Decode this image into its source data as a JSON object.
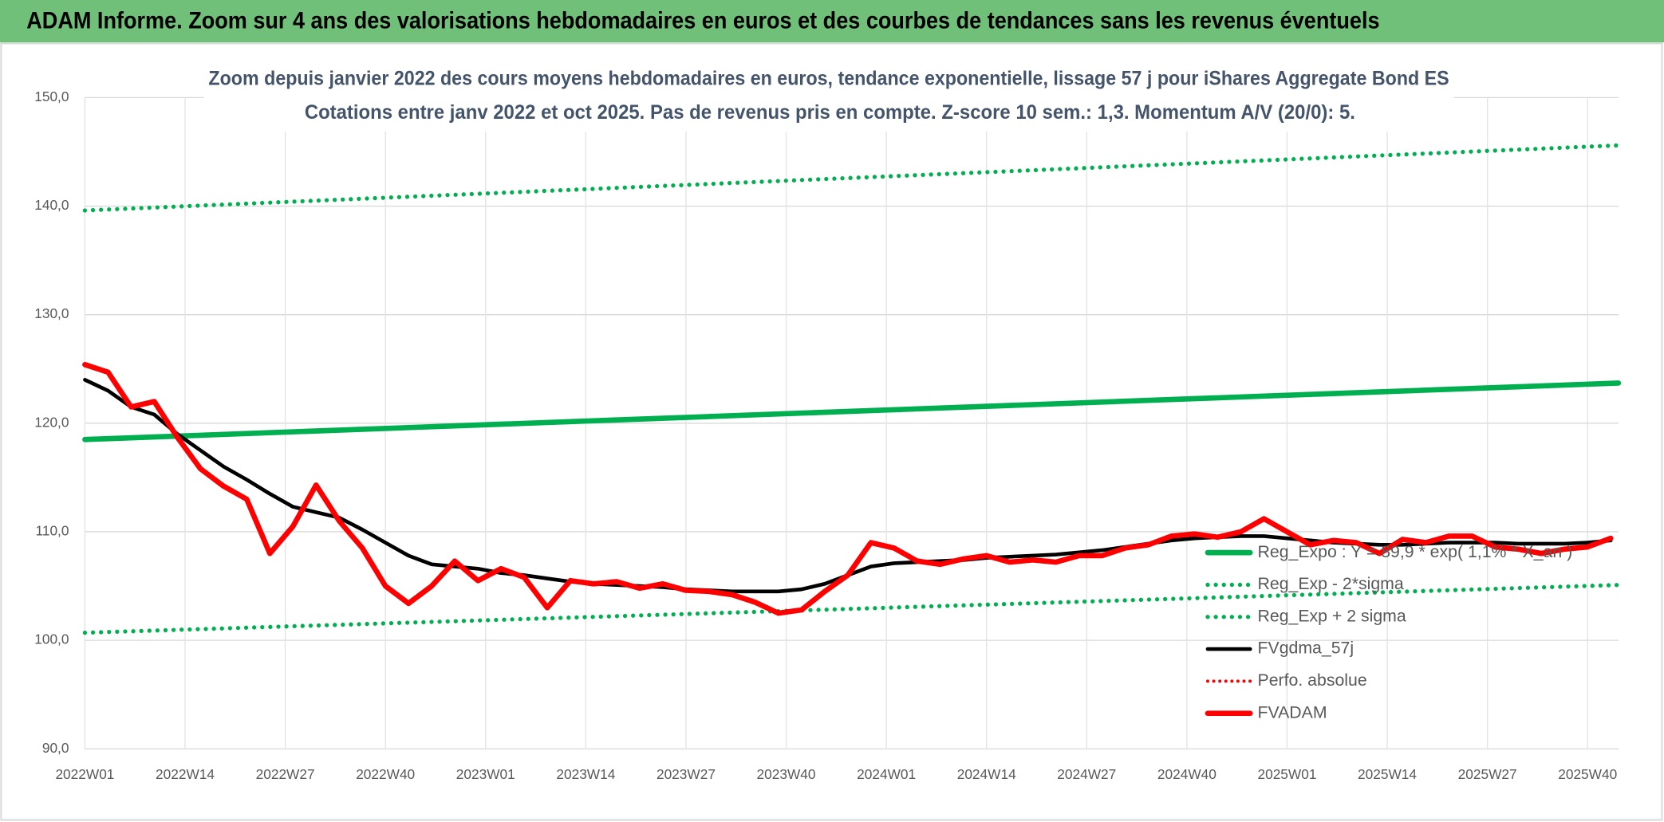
{
  "chart_data": {
    "type": "line",
    "title": "ADAM Informe. Zoom sur 4 ans des valorisations hebdomadaires en euros et des courbes de tendances sans les revenus éventuels",
    "subtitle": [
      "Zoom depuis janvier 2022 des cours moyens hebdomadaires en euros, tendance exponentielle, lissage 57 j pour iShares Aggregate Bond ES",
      "Cotations entre janv 2022 et oct 2025. Pas de revenus pris en compte. Z-score 10 sem.: 1,3. Momentum A/V (20/0): 5."
    ],
    "xlim": [
      0,
      199
    ],
    "xticks": [
      {
        "value": 0,
        "label": "2022W01"
      },
      {
        "value": 13,
        "label": "2022W14"
      },
      {
        "value": 26,
        "label": "2022W27"
      },
      {
        "value": 39,
        "label": "2022W40"
      },
      {
        "value": 52,
        "label": "2023W01"
      },
      {
        "value": 65,
        "label": "2023W14"
      },
      {
        "value": 78,
        "label": "2023W27"
      },
      {
        "value": 91,
        "label": "2023W40"
      },
      {
        "value": 104,
        "label": "2024W01"
      },
      {
        "value": 117,
        "label": "2024W14"
      },
      {
        "value": 130,
        "label": "2024W27"
      },
      {
        "value": 143,
        "label": "2024W40"
      },
      {
        "value": 156,
        "label": "2025W01"
      },
      {
        "value": 169,
        "label": "2025W14"
      },
      {
        "value": 182,
        "label": "2025W27"
      },
      {
        "value": 195,
        "label": "2025W40"
      }
    ],
    "ylim": [
      90,
      150
    ],
    "yticks": [
      {
        "value": 90,
        "label": "90,0"
      },
      {
        "value": 100,
        "label": "100,0"
      },
      {
        "value": 110,
        "label": "110,0"
      },
      {
        "value": 120,
        "label": "120,0"
      },
      {
        "value": 130,
        "label": "130,0"
      },
      {
        "value": 140,
        "label": "140,0"
      },
      {
        "value": 150,
        "label": "150,0"
      }
    ],
    "grid": true,
    "legend": "lower right",
    "series": [
      {
        "name": "Reg_Expo : Y = 89,9 * exp( 1,1% * X_an )",
        "color": "#00b050",
        "style": "solid",
        "width": 5,
        "x": [
          0,
          199
        ],
        "values": [
          118.5,
          123.7
        ]
      },
      {
        "name": "Reg_Exp - 2*sigma",
        "color": "#00b050",
        "style": "dotted",
        "width": 4,
        "x": [
          0,
          199
        ],
        "values": [
          100.7,
          105.1
        ]
      },
      {
        "name": "Reg_Exp + 2 sigma",
        "color": "#00b050",
        "style": "dotted",
        "width": 4,
        "x": [
          0,
          199
        ],
        "values": [
          139.6,
          145.6
        ]
      },
      {
        "name": "FVgdma_57j",
        "color": "#000000",
        "style": "solid",
        "width": 3.5,
        "x": [
          0,
          3,
          6,
          9,
          12,
          15,
          18,
          21,
          24,
          27,
          30,
          33,
          36,
          39,
          42,
          45,
          48,
          51,
          54,
          57,
          60,
          63,
          66,
          69,
          72,
          75,
          78,
          81,
          84,
          87,
          90,
          93,
          96,
          99,
          102,
          105,
          108,
          111,
          114,
          117,
          120,
          123,
          126,
          129,
          132,
          135,
          138,
          141,
          144,
          147,
          150,
          153,
          156,
          159,
          162,
          165,
          168,
          171,
          174,
          177,
          180,
          183,
          186,
          189,
          192,
          195,
          198
        ],
        "values": [
          124.0,
          123.0,
          121.5,
          120.8,
          119.0,
          117.5,
          116.0,
          114.8,
          113.5,
          112.3,
          111.8,
          111.3,
          110.2,
          109.0,
          107.8,
          107.0,
          106.8,
          106.6,
          106.2,
          106.0,
          105.7,
          105.4,
          105.2,
          105.1,
          105.0,
          104.9,
          104.7,
          104.6,
          104.5,
          104.5,
          104.5,
          104.7,
          105.2,
          106.0,
          106.8,
          107.1,
          107.2,
          107.3,
          107.4,
          107.6,
          107.7,
          107.8,
          107.9,
          108.1,
          108.3,
          108.6,
          108.9,
          109.2,
          109.4,
          109.5,
          109.6,
          109.6,
          109.4,
          109.2,
          109.0,
          108.9,
          108.8,
          108.8,
          108.9,
          109.0,
          109.0,
          109.0,
          108.9,
          108.9,
          108.9,
          109.0,
          109.2
        ]
      },
      {
        "name": "Perfo. absolue",
        "color": "#ff0000",
        "style": "dotted",
        "width": 3,
        "x": [],
        "values": []
      },
      {
        "name": "FVADAM",
        "color": "#ff0000",
        "style": "solid",
        "width": 5,
        "x": [
          0,
          3,
          6,
          9,
          12,
          15,
          18,
          21,
          24,
          27,
          30,
          33,
          36,
          39,
          42,
          45,
          48,
          51,
          54,
          57,
          60,
          63,
          66,
          69,
          72,
          75,
          78,
          81,
          84,
          87,
          90,
          93,
          96,
          99,
          102,
          105,
          108,
          111,
          114,
          117,
          120,
          123,
          126,
          129,
          132,
          135,
          138,
          141,
          144,
          147,
          150,
          153,
          156,
          159,
          162,
          165,
          168,
          171,
          174,
          177,
          180,
          183,
          186,
          189,
          192,
          195,
          198
        ],
        "values": [
          125.4,
          124.7,
          121.5,
          122.0,
          118.7,
          115.8,
          114.2,
          113.0,
          108.0,
          110.5,
          114.3,
          111.0,
          108.5,
          105.0,
          103.4,
          105.0,
          107.3,
          105.5,
          106.6,
          105.8,
          103.0,
          105.5,
          105.2,
          105.4,
          104.8,
          105.2,
          104.6,
          104.5,
          104.2,
          103.5,
          102.5,
          102.8,
          104.5,
          106.0,
          109.0,
          108.5,
          107.3,
          107.0,
          107.5,
          107.8,
          107.2,
          107.4,
          107.2,
          107.8,
          107.8,
          108.5,
          108.8,
          109.6,
          109.8,
          109.5,
          110.0,
          111.2,
          110.0,
          108.8,
          109.2,
          109.0,
          108.0,
          109.3,
          109.0,
          109.6,
          109.6,
          108.6,
          108.4,
          108.0,
          108.4,
          108.6,
          109.4
        ]
      }
    ]
  }
}
